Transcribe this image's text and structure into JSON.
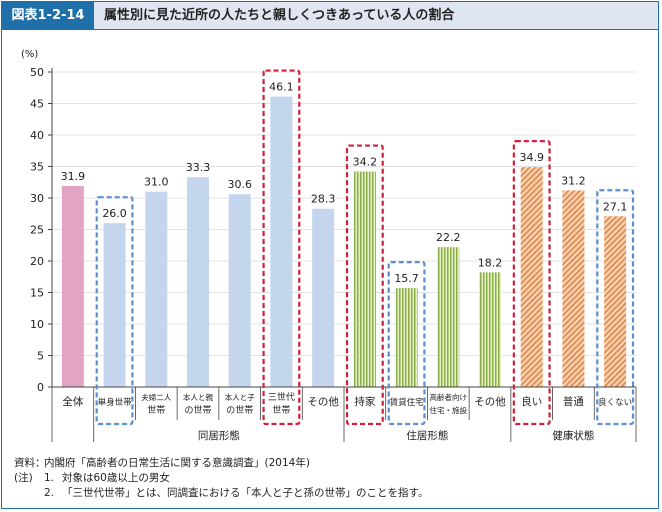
{
  "header": {
    "figure_label": "図表1-2-14",
    "title": "属性別に見た近所の人たちと親しくつきあっている人の割合"
  },
  "chart_data": {
    "type": "bar",
    "ylabel": "(%)",
    "ylim": [
      0,
      50
    ],
    "yticks": [
      0,
      5,
      10,
      15,
      20,
      25,
      30,
      35,
      40,
      45,
      50
    ],
    "categories": [
      [
        "全体"
      ],
      [
        "単身世帯"
      ],
      [
        "夫婦二人",
        "世帯"
      ],
      [
        "本人と親",
        "の世帯"
      ],
      [
        "本人と子",
        "の世帯"
      ],
      [
        "三世代",
        "世帯"
      ],
      [
        "その他"
      ],
      [
        "持家"
      ],
      [
        "賃貸住宅"
      ],
      [
        "高齢者向け",
        "住宅・施設"
      ],
      [
        "その他"
      ],
      [
        "良い"
      ],
      [
        "普通"
      ],
      [
        "良くない"
      ]
    ],
    "values": [
      31.9,
      26.0,
      31.0,
      33.3,
      30.6,
      46.1,
      28.3,
      34.2,
      15.7,
      22.2,
      18.2,
      34.9,
      31.2,
      27.1
    ],
    "value_labels": [
      "31.9",
      "26.0",
      "31.0",
      "33.3",
      "30.6",
      "46.1",
      "28.3",
      "34.2",
      "15.7",
      "22.2",
      "18.2",
      "34.9",
      "31.2",
      "27.1"
    ],
    "bar_styles": [
      "overall",
      "household",
      "household",
      "household",
      "household",
      "household",
      "household",
      "residence",
      "residence",
      "residence",
      "residence",
      "health",
      "health",
      "health"
    ],
    "highlight": [
      "none",
      "blue",
      "none",
      "none",
      "none",
      "red",
      "none",
      "red",
      "blue",
      "none",
      "none",
      "red",
      "none",
      "blue"
    ],
    "groups": [
      {
        "label": "同居形態",
        "start": 1,
        "end": 6
      },
      {
        "label": "住居形態",
        "start": 7,
        "end": 10
      },
      {
        "label": "健康状態",
        "start": 11,
        "end": 13
      }
    ],
    "colors": {
      "overall": "#e3a3c3",
      "household": "#c3d6ee",
      "residence_fill": "#e4efc4",
      "residence_stripe": "#8db04c",
      "health_fill": "#f8d5b6",
      "health_stripe": "#e08a4e",
      "highlight_red": "#d21f3c",
      "highlight_blue": "#5b8ed0",
      "axis": "#444444",
      "grid": "#c8c8c8"
    }
  },
  "notes": {
    "source_key": "資料：",
    "source_text": "内閣府「高齢者の日常生活に関する意識調査」(2014年)",
    "note_key": "(注)",
    "note1_num": "1.",
    "note1_text": "対象は60歳以上の男女",
    "note2_num": "2.",
    "note2_text": "「三世代世帯」とは、同調査における「本人と子と孫の世帯」のことを指す。"
  }
}
